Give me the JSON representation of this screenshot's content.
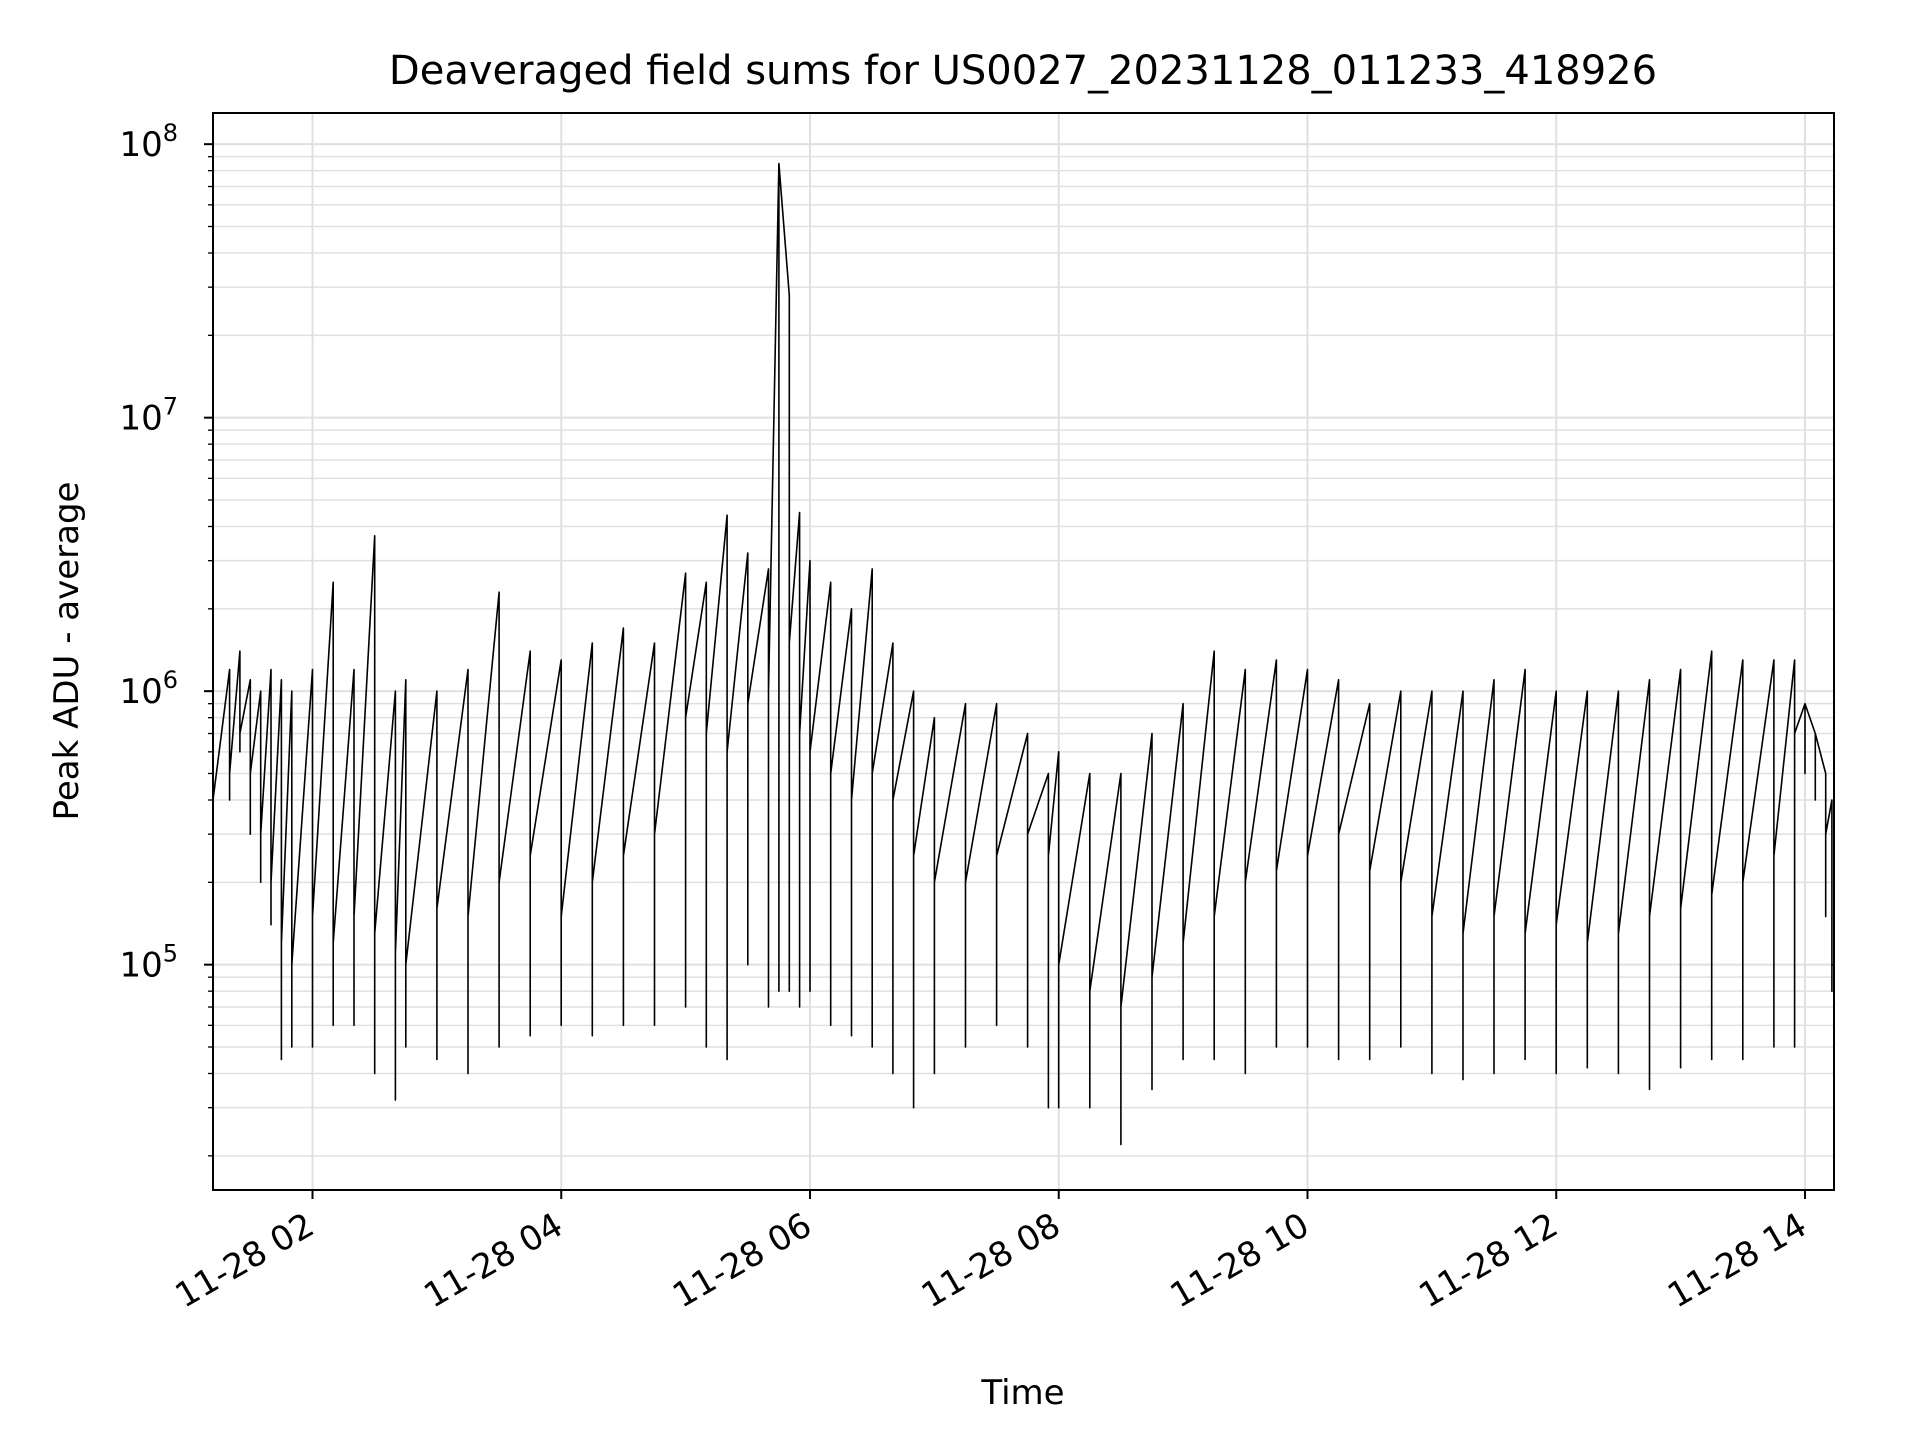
{
  "chart_data": {
    "type": "line",
    "title": "Deaveraged field sums for US0027_20231128_011233_418926",
    "xlabel": "Time",
    "ylabel": "Peak ADU - average",
    "yscale": "log",
    "xlim": [
      "2023-11-28 01:12",
      "2023-11-28 14:14"
    ],
    "ylim": [
      15000,
      130000000
    ],
    "grid": true,
    "line_color": "#000000",
    "grid_color": "#e0e0e0",
    "x_ticks": [
      {
        "value": "2023-11-28 02:00",
        "label": "11-28 02"
      },
      {
        "value": "2023-11-28 04:00",
        "label": "11-28 04"
      },
      {
        "value": "2023-11-28 06:00",
        "label": "11-28 06"
      },
      {
        "value": "2023-11-28 08:00",
        "label": "11-28 08"
      },
      {
        "value": "2023-11-28 10:00",
        "label": "11-28 10"
      },
      {
        "value": "2023-11-28 12:00",
        "label": "11-28 12"
      },
      {
        "value": "2023-11-28 14:00",
        "label": "11-28 14"
      }
    ],
    "y_ticks": [
      {
        "value": 100000,
        "base": "10",
        "exp": "5"
      },
      {
        "value": 1000000,
        "base": "10",
        "exp": "6"
      },
      {
        "value": 10000000,
        "base": "10",
        "exp": "7"
      },
      {
        "value": 100000000,
        "base": "10",
        "exp": "8"
      }
    ],
    "series": [
      {
        "x": [
          "2023-11-28 01:12",
          "2023-11-28 01:20",
          "2023-11-28 01:25",
          "2023-11-28 01:30",
          "2023-11-28 01:35",
          "2023-11-28 01:40",
          "2023-11-28 01:45",
          "2023-11-28 01:50",
          "2023-11-28 02:00",
          "2023-11-28 02:10",
          "2023-11-28 02:20",
          "2023-11-28 02:30",
          "2023-11-28 02:40",
          "2023-11-28 02:45",
          "2023-11-28 03:00",
          "2023-11-28 03:15",
          "2023-11-28 03:30",
          "2023-11-28 03:45",
          "2023-11-28 04:00",
          "2023-11-28 04:15",
          "2023-11-28 04:30",
          "2023-11-28 04:45",
          "2023-11-28 05:00",
          "2023-11-28 05:10",
          "2023-11-28 05:20",
          "2023-11-28 05:30",
          "2023-11-28 05:40",
          "2023-11-28 05:45",
          "2023-11-28 05:50",
          "2023-11-28 05:55",
          "2023-11-28 06:00",
          "2023-11-28 06:10",
          "2023-11-28 06:20",
          "2023-11-28 06:30",
          "2023-11-28 06:40",
          "2023-11-28 06:50",
          "2023-11-28 07:00",
          "2023-11-28 07:15",
          "2023-11-28 07:30",
          "2023-11-28 07:45",
          "2023-11-28 07:55",
          "2023-11-28 08:00",
          "2023-11-28 08:15",
          "2023-11-28 08:30",
          "2023-11-28 08:45",
          "2023-11-28 09:00",
          "2023-11-28 09:15",
          "2023-11-28 09:30",
          "2023-11-28 09:45",
          "2023-11-28 10:00",
          "2023-11-28 10:15",
          "2023-11-28 10:30",
          "2023-11-28 10:45",
          "2023-11-28 11:00",
          "2023-11-28 11:15",
          "2023-11-28 11:30",
          "2023-11-28 11:45",
          "2023-11-28 12:00",
          "2023-11-28 12:15",
          "2023-11-28 12:30",
          "2023-11-28 12:45",
          "2023-11-28 13:00",
          "2023-11-28 13:15",
          "2023-11-28 13:30",
          "2023-11-28 13:45",
          "2023-11-28 13:55",
          "2023-11-28 14:00",
          "2023-11-28 14:05",
          "2023-11-28 14:10",
          "2023-11-28 14:13",
          "2023-11-28 14:14"
        ],
        "y": [
          400000,
          500000,
          700000,
          500000,
          300000,
          200000,
          120000,
          100000,
          150000,
          120000,
          150000,
          130000,
          110000,
          100000,
          160000,
          150000,
          200000,
          250000,
          150000,
          200000,
          250000,
          300000,
          800000,
          700000,
          600000,
          900000,
          1000000,
          85000000,
          1500000,
          700000,
          600000,
          500000,
          400000,
          500000,
          400000,
          250000,
          200000,
          200000,
          250000,
          300000,
          250000,
          100000,
          80000,
          70000,
          90000,
          120000,
          150000,
          200000,
          220000,
          250000,
          300000,
          220000,
          200000,
          150000,
          130000,
          150000,
          130000,
          140000,
          120000,
          130000,
          150000,
          160000,
          180000,
          200000,
          250000,
          700000,
          900000,
          700000,
          300000,
          100000,
          45000
        ],
        "y_hi": [
          700000,
          1200000,
          1400000,
          1100000,
          1000000,
          1200000,
          1100000,
          1000000,
          1200000,
          2500000,
          1200000,
          3700000,
          1000000,
          1100000,
          1000000,
          1200000,
          2300000,
          1400000,
          1300000,
          1500000,
          1700000,
          1500000,
          2700000,
          2500000,
          4400000,
          3200000,
          2800000,
          85000000,
          28000000,
          4500000,
          3000000,
          2500000,
          2000000,
          2800000,
          1500000,
          1000000,
          800000,
          900000,
          900000,
          700000,
          500000,
          600000,
          500000,
          500000,
          700000,
          900000,
          1400000,
          1200000,
          1300000,
          1200000,
          1100000,
          900000,
          1000000,
          1000000,
          1000000,
          1100000,
          1200000,
          1000000,
          1000000,
          1000000,
          1100000,
          1200000,
          1400000,
          1300000,
          1300000,
          1300000,
          900000,
          700000,
          500000,
          400000,
          100000
        ],
        "y_lo": [
          300000,
          400000,
          600000,
          300000,
          200000,
          140000,
          45000,
          50000,
          50000,
          60000,
          60000,
          40000,
          32000,
          50000,
          45000,
          40000,
          50000,
          55000,
          60000,
          55000,
          60000,
          60000,
          70000,
          50000,
          45000,
          100000,
          70000,
          80000,
          80000,
          70000,
          80000,
          60000,
          55000,
          50000,
          40000,
          30000,
          40000,
          50000,
          60000,
          50000,
          30000,
          30000,
          30000,
          22000,
          35000,
          45000,
          45000,
          40000,
          50000,
          50000,
          45000,
          45000,
          50000,
          40000,
          38000,
          40000,
          45000,
          40000,
          42000,
          40000,
          35000,
          42000,
          45000,
          45000,
          50000,
          50000,
          500000,
          400000,
          150000,
          80000,
          35000
        ]
      }
    ]
  }
}
